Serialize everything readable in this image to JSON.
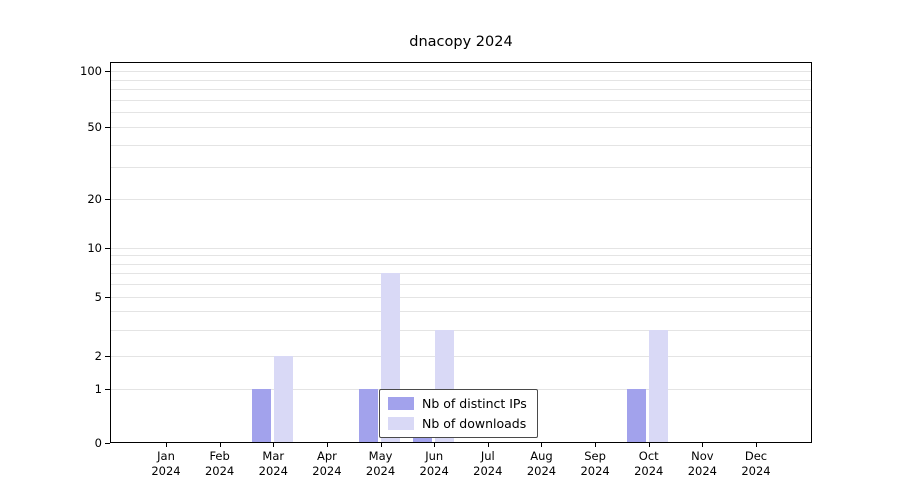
{
  "title": "dnacopy 2024",
  "chart_data": {
    "type": "bar",
    "title": "dnacopy 2024",
    "year": "2024",
    "months": [
      "Jan",
      "Feb",
      "Mar",
      "Apr",
      "May",
      "Jun",
      "Jul",
      "Aug",
      "Sep",
      "Oct",
      "Nov",
      "Dec"
    ],
    "series": [
      {
        "name": "Nb of distinct IPs",
        "color": "#a2a2ec",
        "values": [
          0,
          0,
          1,
          0,
          1,
          1,
          0,
          0,
          0,
          1,
          0,
          0
        ]
      },
      {
        "name": "Nb of downloads",
        "color": "#d9d9f6",
        "values": [
          0,
          0,
          2,
          0,
          7,
          3,
          0,
          0,
          0,
          3,
          0,
          0
        ]
      }
    ],
    "ylabel": "",
    "xlabel": "",
    "yscale": "log-like",
    "ytick_values": [
      0,
      1,
      2,
      5,
      10,
      20,
      50,
      100
    ],
    "grid_values": [
      1,
      2,
      3,
      4,
      5,
      6,
      7,
      8,
      9,
      10,
      20,
      30,
      40,
      50,
      60,
      70,
      80,
      90,
      100
    ],
    "grid": true,
    "legend_position": "bottom-center"
  }
}
